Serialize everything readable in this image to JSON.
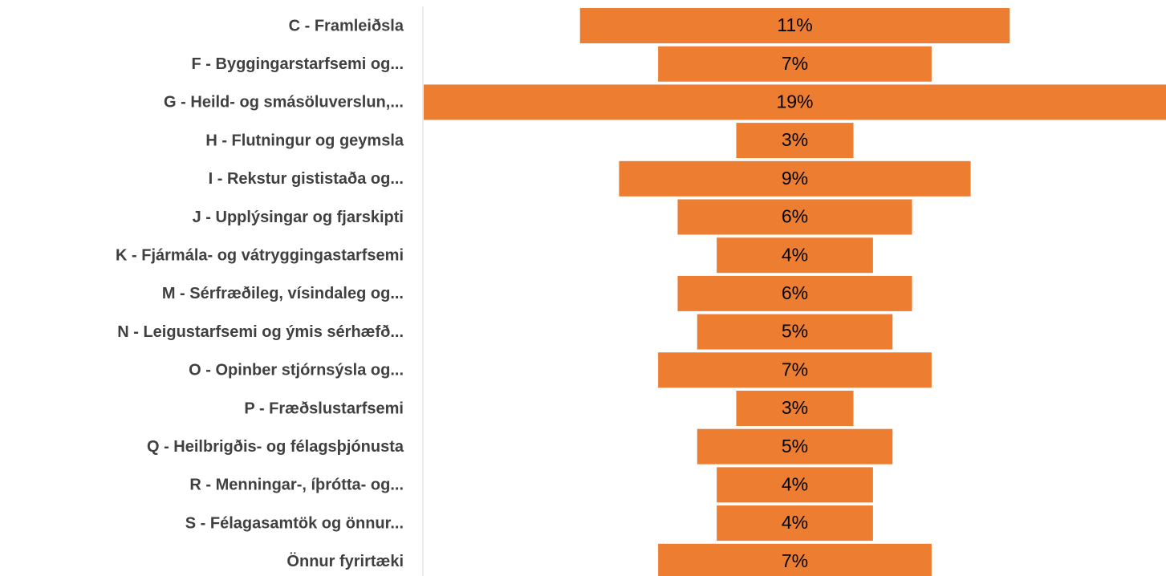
{
  "chart_data": {
    "type": "funnel",
    "categories": [
      "C - Framleiðsla",
      "F - Byggingarstarfsemi og...",
      "G - Heild- og smásöluverslun,...",
      "H - Flutningur og geymsla",
      "I - Rekstur gististaða og...",
      "J - Upplýsingar og fjarskipti",
      "K - Fjármála- og vátryggingastarfsemi",
      "M - Sérfræðileg, vísindaleg og...",
      "N - Leigustarfsemi og ýmis sérhæfð...",
      "O - Opinber stjórnsýsla og...",
      "P - Fræðslustarfsemi",
      "Q - Heilbrigðis- og félagsþjónusta",
      "R - Menningar-, íþrótta- og...",
      "S - Félagasamtök og önnur...",
      "Önnur fyrirtæki"
    ],
    "values": [
      11,
      7,
      19,
      3,
      9,
      6,
      4,
      6,
      5,
      7,
      3,
      5,
      4,
      4,
      7
    ],
    "value_labels": [
      "11%",
      "7%",
      "19%",
      "3%",
      "9%",
      "6%",
      "4%",
      "6%",
      "5%",
      "7%",
      "3%",
      "5%",
      "4%",
      "4%",
      "7%"
    ],
    "color": "#ed7d31"
  }
}
